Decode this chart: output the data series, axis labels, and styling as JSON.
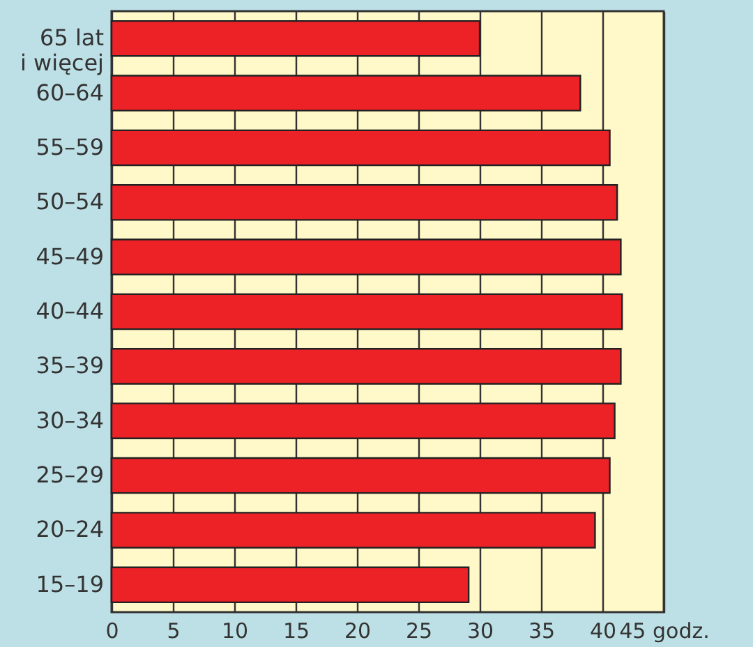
{
  "chart_data": {
    "type": "bar",
    "orientation": "horizontal",
    "categories": [
      "65 lat i więcej",
      "60–64",
      "55–59",
      "50–54",
      "45–49",
      "40–44",
      "35–39",
      "30–34",
      "25–29",
      "20–24",
      "15–19"
    ],
    "values": [
      30.0,
      38.2,
      40.6,
      41.2,
      41.5,
      41.6,
      41.5,
      41.0,
      40.6,
      39.4,
      29.1
    ],
    "color": "#ec2227",
    "xlim": [
      0,
      45
    ],
    "xticks": [
      0,
      5,
      10,
      15,
      20,
      25,
      30,
      35,
      40,
      {
        "value": 45,
        "label": "45 godz."
      }
    ],
    "grid": "x"
  }
}
